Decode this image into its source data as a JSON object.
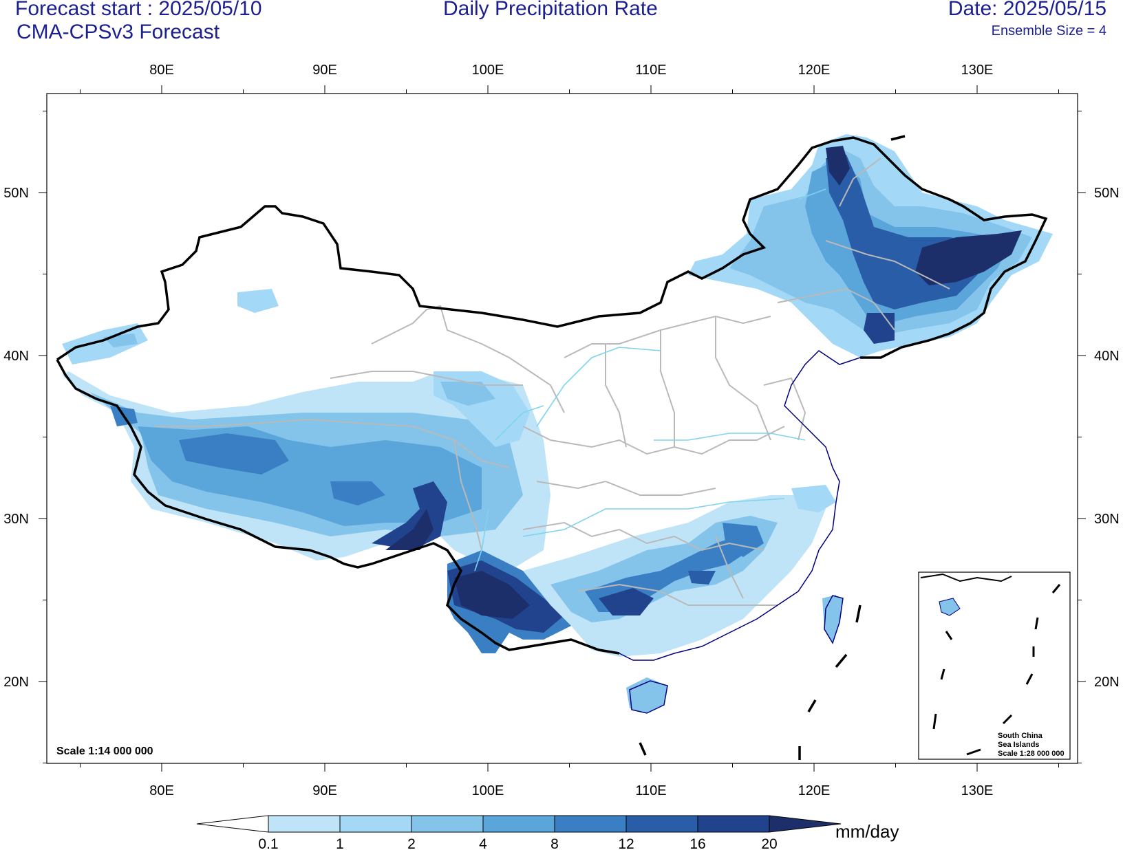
{
  "header": {
    "forecast_start": "Forecast start : 2025/05/10",
    "model": "CMA-CPSv3 Forecast",
    "title": "Daily Precipitation Rate",
    "date": "Date: 2025/05/15",
    "ensemble": "Ensemble Size = 4"
  },
  "axes": {
    "lon_labels": [
      "80E",
      "90E",
      "100E",
      "110E",
      "120E",
      "130E"
    ],
    "lat_labels": [
      "50N",
      "40N",
      "30N",
      "20N"
    ]
  },
  "map": {
    "scale_main": "Scale 1:14 000 000",
    "inset": {
      "title_line1": "South China",
      "title_line2": "Sea Islands",
      "scale": "Scale 1:28 000 000"
    }
  },
  "colorbar": {
    "levels": [
      "0.1",
      "1",
      "2",
      "4",
      "8",
      "12",
      "16",
      "20"
    ],
    "colors": [
      "#ffffff",
      "#bfe3f7",
      "#a3d9f6",
      "#84c3ea",
      "#5aa6db",
      "#3a7fc4",
      "#2a5da8",
      "#21438d",
      "#1d2f6b"
    ],
    "unit": "mm/day"
  },
  "colors": {
    "text_blue": "#1c1f8f",
    "border": "#000000",
    "province_lines": "#b9b9b9",
    "rivers": "#7fd3ee",
    "coast": "#000080"
  }
}
